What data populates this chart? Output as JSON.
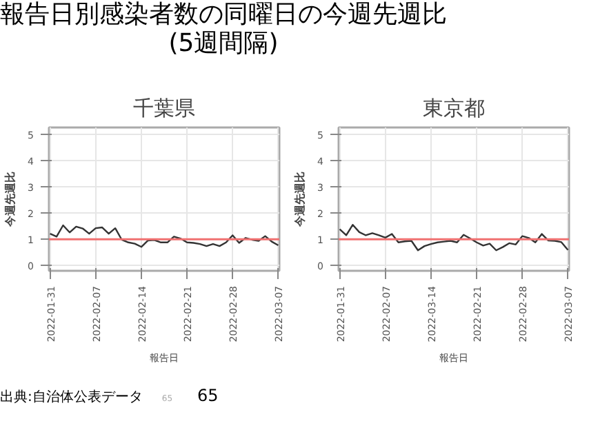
{
  "chart_data": [
    {
      "type": "line",
      "title": "千葉県",
      "xlabel": "報告日",
      "ylabel": "今週先週比",
      "annotations": [
        "報告日別感染者数の同曜日の今週先週比\n(5週間隔)"
      ],
      "x": [
        "2022-01-31",
        "2022-02-01",
        "2022-02-02",
        "2022-02-03",
        "2022-02-04",
        "2022-02-05",
        "2022-02-06",
        "2022-02-07",
        "2022-02-08",
        "2022-02-09",
        "2022-02-10",
        "2022-02-11",
        "2022-02-12",
        "2022-02-13",
        "2022-02-14",
        "2022-02-15",
        "2022-02-16",
        "2022-02-17",
        "2022-02-18",
        "2022-02-19",
        "2022-02-20",
        "2022-02-21",
        "2022-02-22",
        "2022-02-23",
        "2022-02-24",
        "2022-02-25",
        "2022-02-26",
        "2022-02-27",
        "2022-02-28",
        "2022-03-01",
        "2022-03-02",
        "2022-03-03",
        "2022-03-04",
        "2022-03-05",
        "2022-03-06",
        "2022-03-07"
      ],
      "series": [
        {
          "color": "#333333",
          "values": [
            1.21,
            1.1,
            1.53,
            1.26,
            1.48,
            1.41,
            1.21,
            1.42,
            1.45,
            1.21,
            1.42,
            0.98,
            0.88,
            0.83,
            0.71,
            0.95,
            0.97,
            0.88,
            0.88,
            1.1,
            1.03,
            0.88,
            0.86,
            0.82,
            0.74,
            0.82,
            0.74,
            0.88,
            1.15,
            0.86,
            1.05,
            0.98,
            0.94,
            1.12,
            0.91,
            0.77
          ]
        }
      ],
      "xlim": [
        "2022-01-30T20:00",
        "2022-03-07T04:00"
      ],
      "xticks": [
        "2022-01-31",
        "2022-02-07",
        "2022-02-14",
        "2022-02-21",
        "2022-02-28",
        "2022-03-07"
      ],
      "ylim": [
        -0.2,
        5.25
      ],
      "yticks": [
        0,
        1,
        2,
        3,
        4,
        5
      ],
      "grid": true,
      "ref_lines": [
        {
          "axis": "y",
          "value": 1,
          "color": "#f07070"
        }
      ]
    },
    {
      "type": "line",
      "title": "東京都",
      "xlabel": "報告日",
      "ylabel": "今週先週比",
      "annotations": [
        "出典:自治体公表データ",
        "65",
        "65"
      ],
      "x": [
        "2022-01-31",
        "2022-02-01",
        "2022-02-02",
        "2022-02-03",
        "2022-02-04",
        "2022-02-05",
        "2022-02-06",
        "2022-02-07",
        "2022-02-08",
        "2022-02-09",
        "2022-02-10",
        "2022-02-11",
        "2022-02-12",
        "2022-02-13",
        "2022-02-14",
        "2022-02-15",
        "2022-02-16",
        "2022-02-17",
        "2022-02-18",
        "2022-02-19",
        "2022-02-20",
        "2022-02-21",
        "2022-02-22",
        "2022-02-23",
        "2022-02-24",
        "2022-02-25",
        "2022-02-26",
        "2022-02-27",
        "2022-02-28",
        "2022-03-01",
        "2022-03-02",
        "2022-03-03",
        "2022-03-04",
        "2022-03-05",
        "2022-03-06",
        "2022-03-07"
      ],
      "series": [
        {
          "color": "#333333",
          "values": [
            1.38,
            1.15,
            1.55,
            1.27,
            1.15,
            1.23,
            1.15,
            1.06,
            1.2,
            0.88,
            0.92,
            0.94,
            0.58,
            0.74,
            0.82,
            0.88,
            0.91,
            0.94,
            0.88,
            1.17,
            1.03,
            0.88,
            0.76,
            0.83,
            0.58,
            0.7,
            0.85,
            0.8,
            1.12,
            1.05,
            0.88,
            1.2,
            0.95,
            0.94,
            0.89,
            0.59
          ]
        }
      ],
      "xlim": [
        "2022-01-30T20:00",
        "2022-03-07T04:00"
      ],
      "xticks": [
        "2022-01-31",
        "2022-02-07",
        {
          "value": "2022-02-14",
          "label": "2022-03-14"
        },
        "2022-02-21",
        "2022-02-28",
        "2022-03-07"
      ],
      "ylim": [
        -0.2,
        5.25
      ],
      "yticks": [
        0,
        1,
        2,
        3,
        4,
        5
      ],
      "grid": true,
      "ref_lines": [
        {
          "axis": "y",
          "value": 1,
          "color": "#f07070"
        }
      ]
    }
  ]
}
